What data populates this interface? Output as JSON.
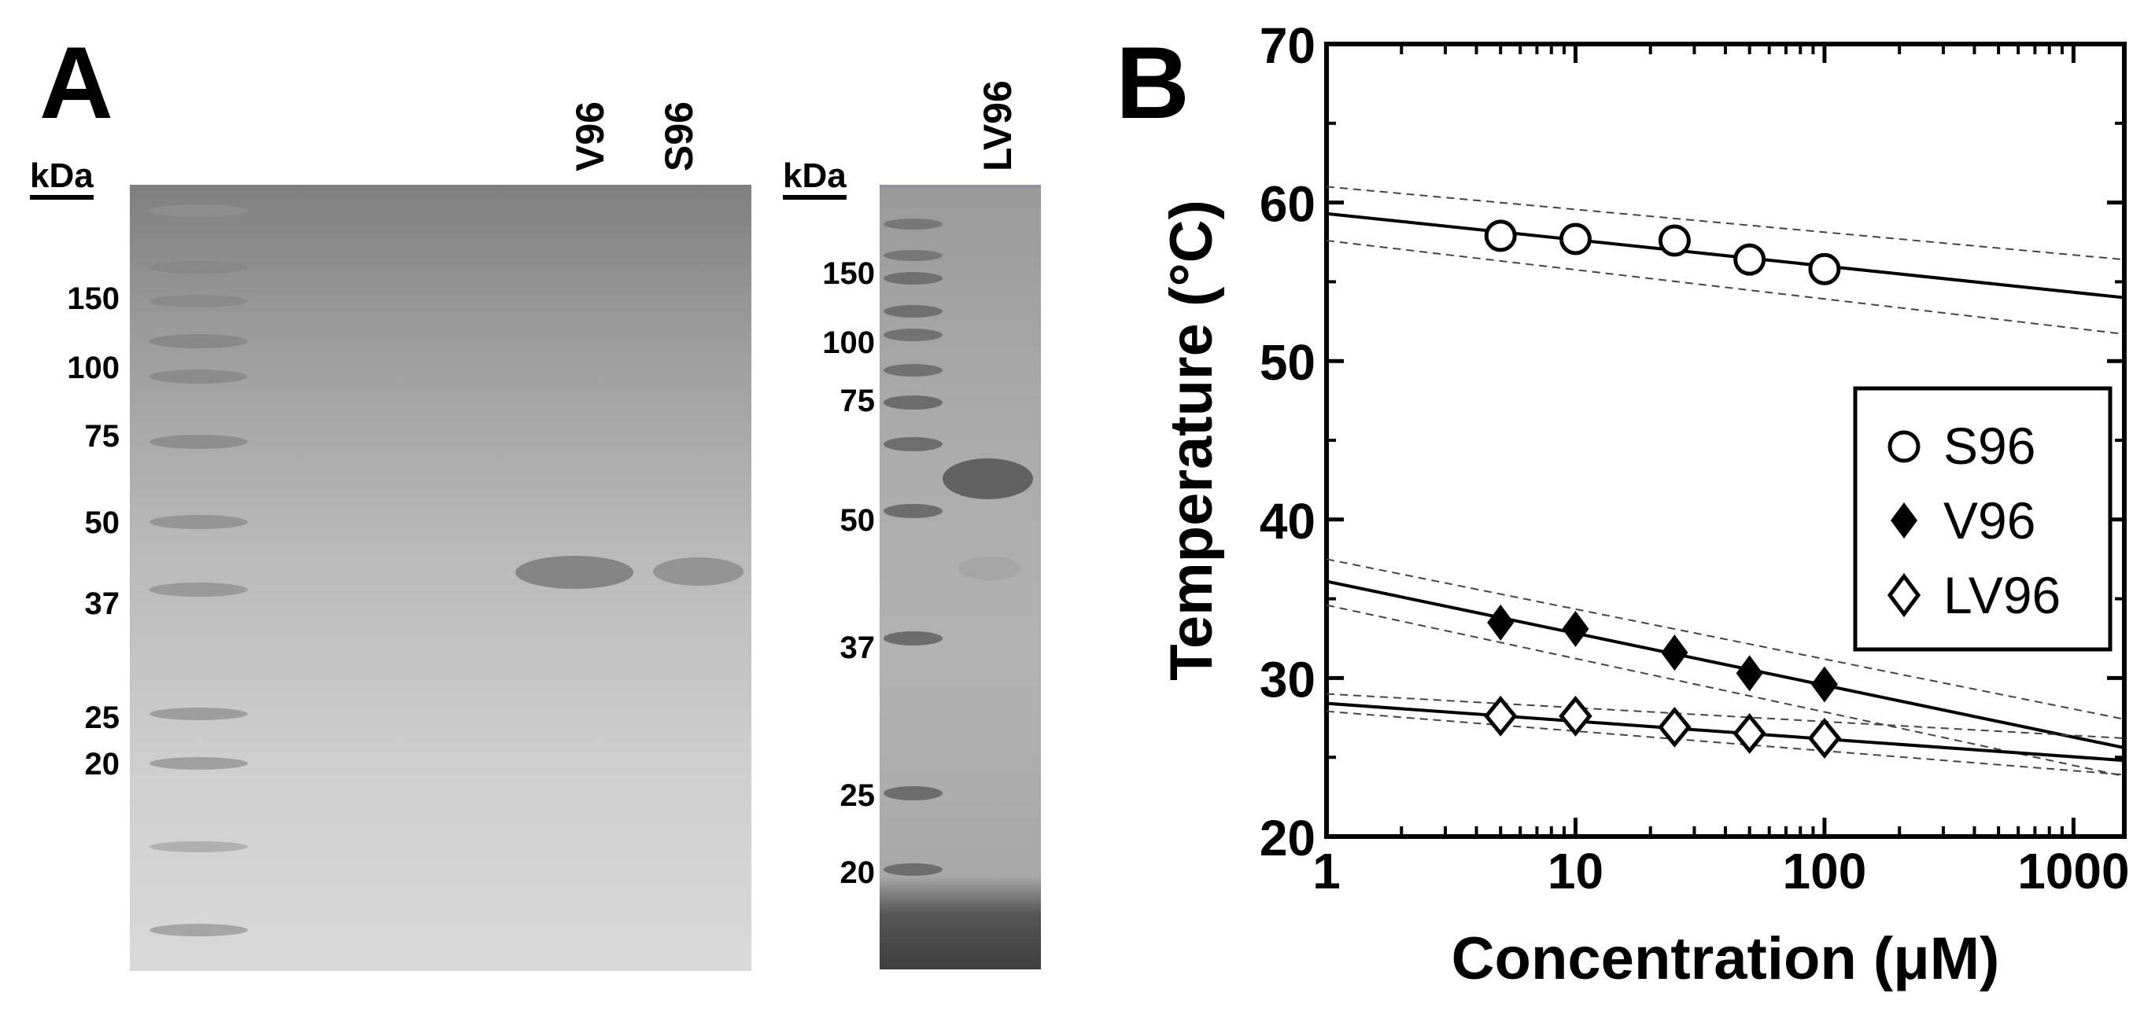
{
  "panel_a": {
    "letter": "A",
    "gel1": {
      "unit_label": "kDa",
      "ladder": [
        "150",
        "100",
        "75",
        "50",
        "37",
        "25",
        "20"
      ],
      "lanes": [
        "V96",
        "S96"
      ]
    },
    "gel2": {
      "unit_label": "kDa",
      "ladder": [
        "150",
        "100",
        "75",
        "50",
        "37",
        "25",
        "20"
      ],
      "lanes": [
        "LV96"
      ]
    }
  },
  "panel_b": {
    "letter": "B"
  },
  "chart_data": {
    "type": "scatter",
    "xlabel": "Concentration (μM)",
    "ylabel": "Temperature (°C)",
    "xscale": "log",
    "xlim": [
      1,
      1600
    ],
    "ylim": [
      20,
      70
    ],
    "xticks": [
      "1",
      "10",
      "100",
      "1000"
    ],
    "yticks": [
      "20",
      "30",
      "40",
      "50",
      "60",
      "70"
    ],
    "legend_placement": "right",
    "grid": false,
    "series": [
      {
        "name": "S96",
        "marker": "open-circle",
        "x": [
          5,
          10,
          25,
          50,
          100
        ],
        "y": [
          57.9,
          57.7,
          57.6,
          56.4,
          55.8
        ],
        "fit": {
          "y_at_1": 59.3,
          "y_at_1600": 54.0
        },
        "ci_low": {
          "y_at_1": 57.6,
          "y_at_1600": 51.7
        },
        "ci_high": {
          "y_at_1": 61.0,
          "y_at_1600": 56.4
        }
      },
      {
        "name": "V96",
        "marker": "filled-diamond",
        "x": [
          5,
          10,
          25,
          50,
          100
        ],
        "y": [
          33.5,
          33.1,
          31.6,
          30.3,
          29.6
        ],
        "fit": {
          "y_at_1": 36.1,
          "y_at_1600": 25.6
        },
        "ci_low": {
          "y_at_1": 34.6,
          "y_at_1600": 23.8
        },
        "ci_high": {
          "y_at_1": 37.5,
          "y_at_1600": 27.4
        }
      },
      {
        "name": "LV96",
        "marker": "open-diamond",
        "x": [
          5,
          10,
          25,
          50,
          100
        ],
        "y": [
          27.6,
          27.6,
          26.9,
          26.5,
          26.2
        ],
        "fit": {
          "y_at_1": 28.4,
          "y_at_1600": 24.8
        },
        "ci_low": {
          "y_at_1": 27.9,
          "y_at_1600": 23.9
        },
        "ci_high": {
          "y_at_1": 29.0,
          "y_at_1600": 26.2
        }
      }
    ]
  }
}
